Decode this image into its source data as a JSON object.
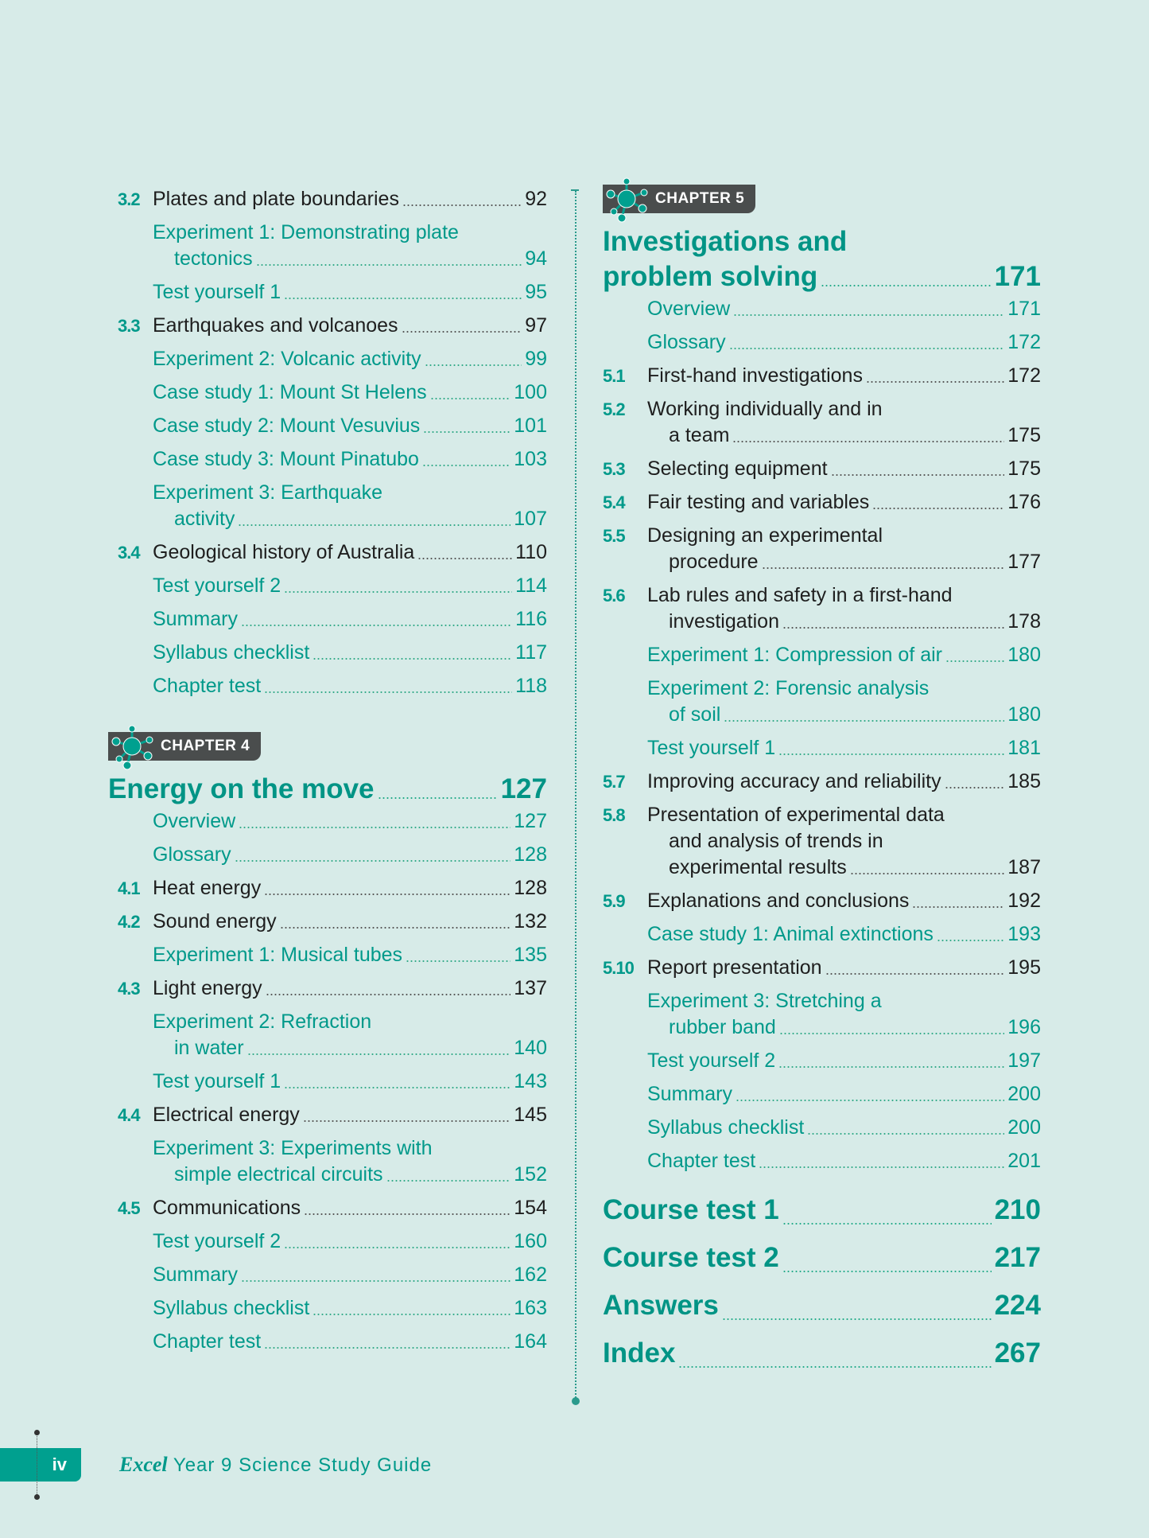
{
  "colors": {
    "background": "#d7ebe8",
    "accent": "#00998a",
    "badge": "#4a4d4d"
  },
  "left": {
    "entries": [
      {
        "num": "3.2",
        "lines": [
          "Plates and plate boundaries"
        ],
        "page": "92",
        "kind": "section"
      },
      {
        "lines": [
          "Experiment 1: Demonstrating plate",
          "tectonics"
        ],
        "page": "94",
        "kind": "sub"
      },
      {
        "lines": [
          "Test yourself 1"
        ],
        "page": "95",
        "kind": "sub"
      },
      {
        "num": "3.3",
        "lines": [
          "Earthquakes and volcanoes"
        ],
        "page": "97",
        "kind": "section"
      },
      {
        "lines": [
          "Experiment 2: Volcanic activity"
        ],
        "page": "99",
        "kind": "sub"
      },
      {
        "lines": [
          "Case study 1: Mount St Helens"
        ],
        "page": "100",
        "kind": "sub"
      },
      {
        "lines": [
          "Case study 2: Mount Vesuvius"
        ],
        "page": "101",
        "kind": "sub"
      },
      {
        "lines": [
          "Case study 3: Mount Pinatubo"
        ],
        "page": "103",
        "kind": "sub"
      },
      {
        "lines": [
          "Experiment 3: Earthquake",
          "activity"
        ],
        "page": "107",
        "kind": "sub"
      },
      {
        "num": "3.4",
        "lines": [
          "Geological history of Australia"
        ],
        "page": "110",
        "kind": "section"
      },
      {
        "lines": [
          "Test yourself 2"
        ],
        "page": "114",
        "kind": "sub"
      },
      {
        "lines": [
          "Summary"
        ],
        "page": "116",
        "kind": "sub"
      },
      {
        "lines": [
          "Syllabus checklist"
        ],
        "page": "117",
        "kind": "sub"
      },
      {
        "lines": [
          "Chapter test"
        ],
        "page": "118",
        "kind": "sub"
      }
    ],
    "chapter": {
      "badge": "CHAPTER 4",
      "title_lines": [
        "Energy on the move"
      ],
      "page": "127",
      "entries": [
        {
          "lines": [
            "Overview"
          ],
          "page": "127",
          "kind": "sub"
        },
        {
          "lines": [
            "Glossary"
          ],
          "page": "128",
          "kind": "sub"
        },
        {
          "num": "4.1",
          "lines": [
            "Heat energy"
          ],
          "page": "128",
          "kind": "section"
        },
        {
          "num": "4.2",
          "lines": [
            "Sound energy"
          ],
          "page": "132",
          "kind": "section"
        },
        {
          "lines": [
            "Experiment 1: Musical tubes"
          ],
          "page": "135",
          "kind": "sub"
        },
        {
          "num": "4.3",
          "lines": [
            "Light energy"
          ],
          "page": "137",
          "kind": "section"
        },
        {
          "lines": [
            "Experiment 2: Refraction",
            "in water"
          ],
          "page": "140",
          "kind": "sub"
        },
        {
          "lines": [
            "Test yourself 1"
          ],
          "page": "143",
          "kind": "sub"
        },
        {
          "num": "4.4",
          "lines": [
            "Electrical energy"
          ],
          "page": "145",
          "kind": "section"
        },
        {
          "lines": [
            "Experiment 3: Experiments with",
            "simple electrical circuits"
          ],
          "page": "152",
          "kind": "sub"
        },
        {
          "num": "4.5",
          "lines": [
            "Communications"
          ],
          "page": "154",
          "kind": "section"
        },
        {
          "lines": [
            "Test yourself 2"
          ],
          "page": "160",
          "kind": "sub"
        },
        {
          "lines": [
            "Summary"
          ],
          "page": "162",
          "kind": "sub"
        },
        {
          "lines": [
            "Syllabus checklist"
          ],
          "page": "163",
          "kind": "sub"
        },
        {
          "lines": [
            "Chapter test"
          ],
          "page": "164",
          "kind": "sub"
        }
      ]
    }
  },
  "right": {
    "chapter": {
      "badge": "CHAPTER 5",
      "title_lines": [
        "Investigations and",
        "problem solving"
      ],
      "page": "171",
      "entries": [
        {
          "lines": [
            "Overview"
          ],
          "page": "171",
          "kind": "sub"
        },
        {
          "lines": [
            "Glossary"
          ],
          "page": "172",
          "kind": "sub"
        },
        {
          "num": "5.1",
          "lines": [
            "First-hand investigations"
          ],
          "page": "172",
          "kind": "section"
        },
        {
          "num": "5.2",
          "lines": [
            "Working individually and in",
            "a team"
          ],
          "page": "175",
          "kind": "section"
        },
        {
          "num": "5.3",
          "lines": [
            "Selecting equipment"
          ],
          "page": "175",
          "kind": "section"
        },
        {
          "num": "5.4",
          "lines": [
            "Fair testing and variables"
          ],
          "page": "176",
          "kind": "section"
        },
        {
          "num": "5.5",
          "lines": [
            "Designing an experimental",
            "procedure"
          ],
          "page": "177",
          "kind": "section"
        },
        {
          "num": "5.6",
          "lines": [
            "Lab rules and safety in a first-hand",
            "investigation"
          ],
          "page": "178",
          "kind": "section"
        },
        {
          "lines": [
            "Experiment 1: Compression of air"
          ],
          "page": "180",
          "kind": "sub"
        },
        {
          "lines": [
            "Experiment 2: Forensic analysis",
            "of soil"
          ],
          "page": "180",
          "kind": "sub"
        },
        {
          "lines": [
            "Test yourself 1"
          ],
          "page": "181",
          "kind": "sub"
        },
        {
          "num": "5.7",
          "lines": [
            "Improving accuracy and reliability"
          ],
          "page": "185",
          "kind": "section"
        },
        {
          "num": "5.8",
          "lines": [
            "Presentation of experimental data",
            "and analysis of trends in",
            "experimental results"
          ],
          "page": "187",
          "kind": "section"
        },
        {
          "num": "5.9",
          "lines": [
            "Explanations and conclusions"
          ],
          "page": "192",
          "kind": "section"
        },
        {
          "lines": [
            "Case study 1: Animal extinctions"
          ],
          "page": "193",
          "kind": "sub"
        },
        {
          "num": "5.10",
          "lines": [
            "Report presentation"
          ],
          "page": "195",
          "kind": "section"
        },
        {
          "lines": [
            "Experiment 3: Stretching a",
            "rubber band"
          ],
          "page": "196",
          "kind": "sub"
        },
        {
          "lines": [
            "Test yourself 2"
          ],
          "page": "197",
          "kind": "sub"
        },
        {
          "lines": [
            "Summary"
          ],
          "page": "200",
          "kind": "sub"
        },
        {
          "lines": [
            "Syllabus checklist"
          ],
          "page": "200",
          "kind": "sub"
        },
        {
          "lines": [
            "Chapter test"
          ],
          "page": "201",
          "kind": "sub"
        }
      ]
    },
    "back_matter": [
      {
        "label": "Course test 1",
        "page": "210"
      },
      {
        "label": "Course test 2",
        "page": "217"
      },
      {
        "label": "Answers",
        "page": "224"
      },
      {
        "label": "Index",
        "page": "267"
      }
    ]
  },
  "footer": {
    "page_number": "iv",
    "brand": "Excel",
    "title": "Year 9 Science Study Guide"
  }
}
